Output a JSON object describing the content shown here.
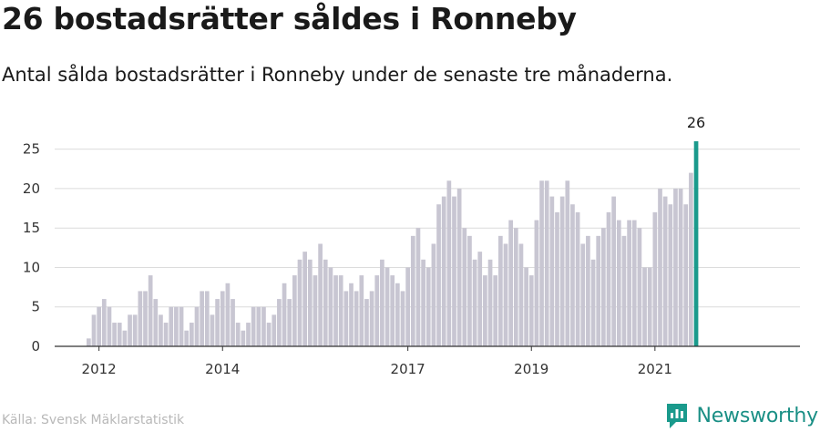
{
  "title": "26 bostadsrätter såldes i Ronneby",
  "subtitle": "Antal sålda bostadsrätter i Ronneby under de senaste tre månaderna.",
  "source": "Källa: Svensk Mäklarstatistik",
  "brand": {
    "name": "Newsworthy",
    "icon": "newsworthy-logo-icon"
  },
  "colors": {
    "bar": "#c8c6d2",
    "highlight": "#1a9a8c",
    "grid": "#dcdcdc",
    "axis": "#333333",
    "brand": "#1a8f85"
  },
  "chart_data": {
    "type": "bar",
    "start": "2011-11",
    "frequency": "monthly",
    "x_tick_labels": [
      "2012",
      "2014",
      "2017",
      "2019",
      "2021"
    ],
    "y_ticks": [
      0,
      5,
      10,
      15,
      20,
      25
    ],
    "ylim": [
      0,
      26
    ],
    "grid": true,
    "highlight_last": true,
    "last_value_label": "26",
    "values": [
      1,
      4,
      5,
      6,
      5,
      3,
      3,
      2,
      4,
      4,
      7,
      7,
      9,
      6,
      4,
      3,
      5,
      5,
      5,
      2,
      3,
      5,
      7,
      7,
      4,
      6,
      7,
      8,
      6,
      3,
      2,
      3,
      5,
      5,
      5,
      3,
      4,
      6,
      8,
      6,
      9,
      11,
      12,
      11,
      9,
      13,
      11,
      10,
      9,
      9,
      7,
      8,
      7,
      9,
      6,
      7,
      9,
      11,
      10,
      9,
      8,
      7,
      10,
      14,
      15,
      11,
      10,
      13,
      18,
      19,
      21,
      19,
      20,
      15,
      14,
      11,
      12,
      9,
      11,
      9,
      14,
      13,
      16,
      15,
      13,
      10,
      9,
      16,
      21,
      21,
      19,
      17,
      19,
      21,
      18,
      17,
      13,
      14,
      11,
      14,
      15,
      17,
      19,
      16,
      14,
      16,
      16,
      15,
      10,
      10,
      17,
      20,
      19,
      18,
      20,
      20,
      18,
      22,
      26
    ]
  }
}
